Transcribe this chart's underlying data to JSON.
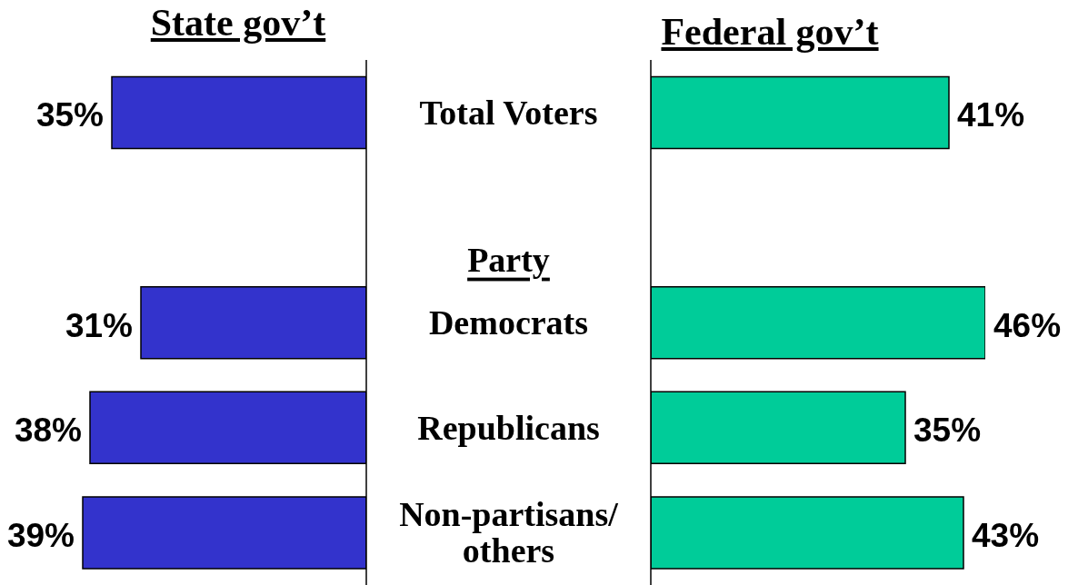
{
  "chart_data": [
    {
      "type": "bar",
      "orientation": "horizontal",
      "title": "State gov’t",
      "categories": [
        "Total Voters",
        "Party",
        "Democrats",
        "Republicans",
        "Non-partisans/ others"
      ],
      "values": [
        35,
        null,
        31,
        38,
        39
      ],
      "value_labels": [
        "35%",
        null,
        "31%",
        "38%",
        "39%"
      ],
      "color": "#3333cc",
      "tick_labels": "y"
    },
    {
      "type": "bar",
      "orientation": "horizontal",
      "title": "Federal gov’t",
      "categories": [
        "Total Voters",
        "Party",
        "Democrats",
        "Republicans",
        "Non-partisans/ others"
      ],
      "values": [
        41,
        null,
        46,
        35,
        43
      ],
      "value_labels": [
        "41%",
        null,
        "46%",
        "35%",
        "43%"
      ],
      "color": "#00cc99",
      "tick_labels": false
    }
  ]
}
